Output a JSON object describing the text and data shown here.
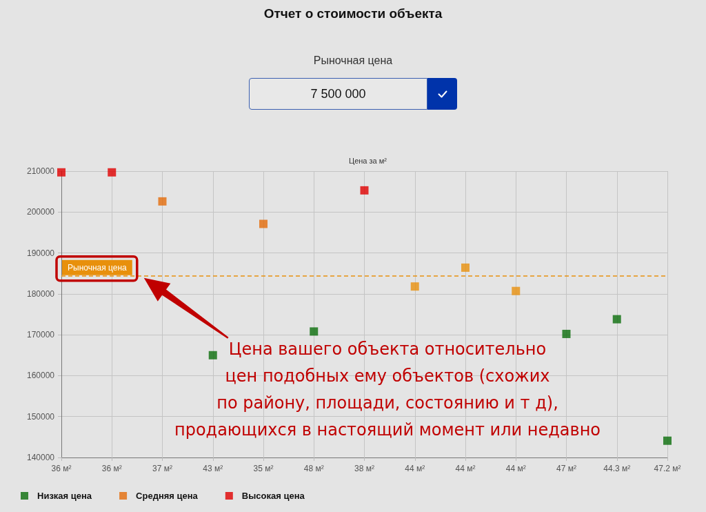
{
  "chart_data": {
    "type": "scatter",
    "title": "Отчет о стоимости объекта",
    "subtitle": "Цена за м²",
    "annotations": [
      "Рыночная цена",
      "7 500 000",
      "Цена вашего объекта относительно\nцен подобных ему объектов (схожих\nпо району, площади, состоянию и т д),\nпродающихся в настоящий момент или недавно"
    ],
    "categories": [
      "36 м²",
      "36 м²",
      "37 м²",
      "43 м²",
      "35 м²",
      "48 м²",
      "38 м²",
      "44 м²",
      "44 м²",
      "44 м²",
      "47 м²",
      "44.3 м²",
      "47.2 м²"
    ],
    "series": [
      {
        "name": "Низкая цена",
        "color": "#0b6e0b",
        "values": [
          null,
          null,
          null,
          165000,
          null,
          170800,
          null,
          null,
          null,
          null,
          170200,
          173800,
          144100
        ]
      },
      {
        "name": "Средняя цена",
        "color": "#e36c0a",
        "colors": [
          null,
          null,
          "#e36c0a",
          null,
          "#e36c0a",
          null,
          null,
          "#e8900c",
          "#e8900c",
          "#e8900c",
          null,
          null,
          null
        ],
        "values": [
          null,
          null,
          202600,
          null,
          197100,
          null,
          null,
          181800,
          186400,
          180700,
          null,
          null,
          null
        ]
      },
      {
        "name": "Высокая цена",
        "color": "#e00000",
        "values": [
          209700,
          209700,
          null,
          null,
          null,
          null,
          205300,
          null,
          null,
          null,
          null,
          null,
          null
        ]
      }
    ],
    "ylim": [
      140000,
      210000
    ],
    "yticks": [
      140000,
      150000,
      160000,
      170000,
      180000,
      190000,
      200000,
      210000
    ],
    "grid": true,
    "legend": "bottom left",
    "marker": "square",
    "ref_lines": [
      {
        "axis": "y",
        "value": 184400,
        "label": "Рыночная цена",
        "color": "#e8900c",
        "line_style": "dashed"
      }
    ]
  }
}
